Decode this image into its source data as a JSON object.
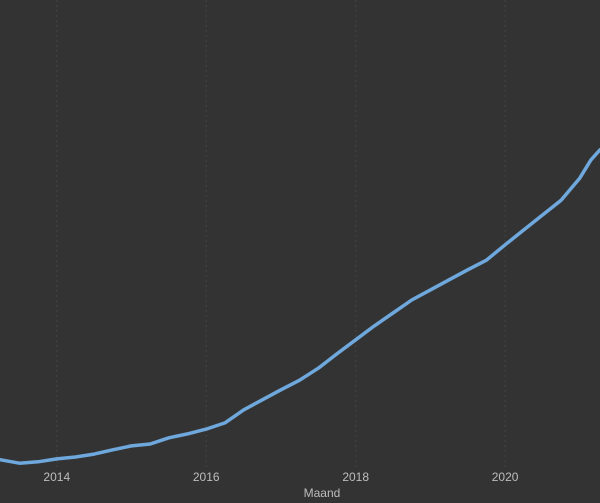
{
  "chart_data": {
    "type": "line",
    "x_label": "Maand",
    "x": [
      2013.25,
      2013.5,
      2013.75,
      2014.0,
      2014.25,
      2014.5,
      2014.75,
      2015.0,
      2015.25,
      2015.5,
      2015.75,
      2016.0,
      2016.25,
      2016.5,
      2016.75,
      2017.0,
      2017.25,
      2017.5,
      2017.75,
      2018.0,
      2018.25,
      2018.5,
      2018.75,
      2019.0,
      2019.25,
      2019.5,
      2019.75,
      2020.0,
      2020.25,
      2020.5,
      2020.75,
      2021.0,
      2021.15,
      2021.27
    ],
    "series": [
      {
        "color": "#6fa8dc",
        "values": [
          4.2,
          3.5,
          3.8,
          4.4,
          4.8,
          5.4,
          6.3,
          7.1,
          7.5,
          8.8,
          9.6,
          10.6,
          11.9,
          14.6,
          16.7,
          18.8,
          20.8,
          23.3,
          26.3,
          29.2,
          32.1,
          34.8,
          37.5,
          39.6,
          41.7,
          43.8,
          45.8,
          49.0,
          52.1,
          55.2,
          58.3,
          62.9,
          66.7,
          68.8
        ]
      }
    ],
    "xlim": [
      2013.24,
      2021.27
    ],
    "xticks": [
      2014,
      2016,
      2018,
      2020
    ],
    "ylim": [
      0,
      100
    ],
    "grid": true
  }
}
